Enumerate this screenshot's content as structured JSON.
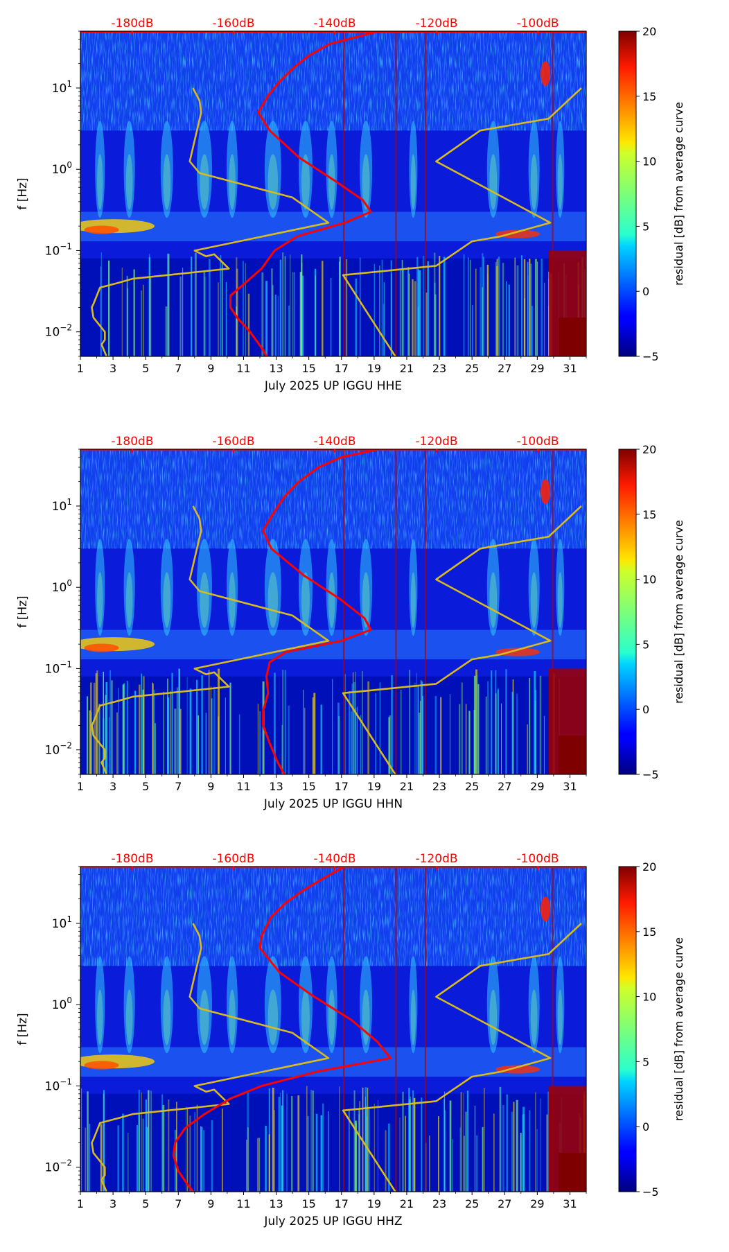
{
  "chart_data": [
    {
      "type": "heatmap",
      "xlabel": "July 2025 UP IGGU  HHE",
      "ylabel": "f [Hz]",
      "colorbar_label": "residual [dB] from average curve",
      "x_ticks": [
        1,
        3,
        5,
        7,
        9,
        11,
        13,
        15,
        17,
        19,
        21,
        23,
        25,
        27,
        29,
        31
      ],
      "x_range": [
        1,
        32
      ],
      "y_range_hz": [
        0.005,
        50
      ],
      "y_scale": "log",
      "y_tick_labels": [
        "10^-2",
        "10^-1",
        "10^0",
        "10^1"
      ],
      "colorbar_ticks": [
        -5,
        0,
        5,
        10,
        15,
        20
      ],
      "colorbar_range": [
        -5,
        20
      ],
      "colormap": "jet",
      "top_axis_labels": [
        "-180dB",
        "-160dB",
        "-140dB",
        "-120dB",
        "-100dB"
      ],
      "top_axis_color": "#ff0000",
      "series": [
        {
          "color": "#d8bb20",
          "points_day_hz": [
            [
              7.9,
              10
            ],
            [
              8.3,
              7
            ],
            [
              8.4,
              5
            ],
            [
              7.7,
              1.25
            ],
            [
              8.3,
              0.9
            ],
            [
              14,
              0.45
            ],
            [
              16.2,
              0.22
            ],
            [
              8,
              0.1
            ],
            [
              8.7,
              0.085
            ],
            [
              9.2,
              0.09
            ],
            [
              10.1,
              0.06
            ],
            [
              4.2,
              0.045
            ],
            [
              3.3,
              0.04
            ],
            [
              2.2,
              0.035
            ],
            [
              1.8,
              0.022
            ],
            [
              1.7,
              0.02
            ],
            [
              1.8,
              0.015
            ],
            [
              2.5,
              0.01
            ],
            [
              2.5,
              0.008
            ],
            [
              2.3,
              0.007
            ],
            [
              2.6,
              0.005
            ]
          ]
        },
        {
          "color": "#d8bb20",
          "points_day_hz": [
            [
              31.7,
              10
            ],
            [
              29.7,
              4.2
            ],
            [
              25.5,
              3
            ],
            [
              22.8,
              1.25
            ],
            [
              29.8,
              0.22
            ],
            [
              26.8,
              0.15
            ],
            [
              25,
              0.13
            ],
            [
              22.8,
              0.065
            ],
            [
              17.1,
              0.05
            ],
            [
              20.3,
              0.005
            ]
          ]
        },
        {
          "color": "#ff0000",
          "points_day_hz": [
            [
              19.3,
              50
            ],
            [
              16.3,
              35
            ],
            [
              15,
              25
            ],
            [
              14.1,
              18
            ],
            [
              13.2,
              12
            ],
            [
              12.5,
              8
            ],
            [
              11.9,
              5
            ],
            [
              12.6,
              3
            ],
            [
              14.4,
              1.4
            ],
            [
              16.7,
              0.7
            ],
            [
              18.3,
              0.42
            ],
            [
              18.8,
              0.3
            ],
            [
              17.2,
              0.22
            ],
            [
              14.3,
              0.15
            ],
            [
              12.9,
              0.1
            ],
            [
              12.1,
              0.06
            ],
            [
              11.1,
              0.04
            ],
            [
              10.2,
              0.028
            ],
            [
              10.2,
              0.02
            ],
            [
              10.6,
              0.015
            ],
            [
              11.4,
              0.01
            ],
            [
              12.2,
              0.006
            ],
            [
              12.4,
              0.005
            ]
          ]
        }
      ]
    },
    {
      "type": "heatmap",
      "xlabel": "July 2025 UP IGGU  HHN",
      "ylabel": "f [Hz]",
      "colorbar_label": "residual [dB] from average curve",
      "x_ticks": [
        1,
        3,
        5,
        7,
        9,
        11,
        13,
        15,
        17,
        19,
        21,
        23,
        25,
        27,
        29,
        31
      ],
      "x_range": [
        1,
        32
      ],
      "y_range_hz": [
        0.005,
        50
      ],
      "y_scale": "log",
      "y_tick_labels": [
        "10^-2",
        "10^-1",
        "10^0",
        "10^1"
      ],
      "colorbar_ticks": [
        -5,
        0,
        5,
        10,
        15,
        20
      ],
      "colorbar_range": [
        -5,
        20
      ],
      "colormap": "jet",
      "top_axis_labels": [
        "-180dB",
        "-160dB",
        "-140dB",
        "-120dB",
        "-100dB"
      ],
      "top_axis_color": "#ff0000",
      "series": [
        {
          "color": "#d8bb20",
          "points_day_hz": [
            [
              7.9,
              10
            ],
            [
              8.3,
              7
            ],
            [
              8.4,
              5
            ],
            [
              7.7,
              1.25
            ],
            [
              8.3,
              0.9
            ],
            [
              14,
              0.45
            ],
            [
              16.2,
              0.22
            ],
            [
              8,
              0.1
            ],
            [
              8.7,
              0.085
            ],
            [
              9.2,
              0.09
            ],
            [
              10.1,
              0.06
            ],
            [
              4.2,
              0.045
            ],
            [
              3.3,
              0.04
            ],
            [
              2.2,
              0.035
            ],
            [
              1.8,
              0.022
            ],
            [
              1.7,
              0.02
            ],
            [
              1.8,
              0.015
            ],
            [
              2.5,
              0.01
            ],
            [
              2.5,
              0.008
            ],
            [
              2.3,
              0.007
            ],
            [
              2.6,
              0.005
            ]
          ]
        },
        {
          "color": "#d8bb20",
          "points_day_hz": [
            [
              31.7,
              10
            ],
            [
              29.7,
              4.2
            ],
            [
              25.5,
              3
            ],
            [
              22.8,
              1.25
            ],
            [
              29.8,
              0.22
            ],
            [
              26.8,
              0.15
            ],
            [
              25,
              0.13
            ],
            [
              22.8,
              0.065
            ],
            [
              17.1,
              0.05
            ],
            [
              20.3,
              0.005
            ]
          ]
        },
        {
          "color": "#ff0000",
          "points_day_hz": [
            [
              19.3,
              50
            ],
            [
              17,
              40
            ],
            [
              15.6,
              30
            ],
            [
              14.4,
              20
            ],
            [
              13.5,
              13
            ],
            [
              12.8,
              8
            ],
            [
              12.2,
              5
            ],
            [
              12.7,
              3
            ],
            [
              14.7,
              1.4
            ],
            [
              16.9,
              0.72
            ],
            [
              18.4,
              0.42
            ],
            [
              18.8,
              0.3
            ],
            [
              17,
              0.22
            ],
            [
              13.6,
              0.16
            ],
            [
              12.6,
              0.12
            ],
            [
              12.4,
              0.08
            ],
            [
              12.5,
              0.05
            ],
            [
              12.2,
              0.03
            ],
            [
              12.2,
              0.02
            ],
            [
              12.6,
              0.012
            ],
            [
              13.1,
              0.007
            ],
            [
              13.5,
              0.005
            ]
          ]
        }
      ]
    },
    {
      "type": "heatmap",
      "xlabel": "July 2025 UP IGGU  HHZ",
      "ylabel": "f [Hz]",
      "colorbar_label": "residual [dB] from average curve",
      "x_ticks": [
        1,
        3,
        5,
        7,
        9,
        11,
        13,
        15,
        17,
        19,
        21,
        23,
        25,
        27,
        29,
        31
      ],
      "x_range": [
        1,
        32
      ],
      "y_range_hz": [
        0.005,
        50
      ],
      "y_scale": "log",
      "y_tick_labels": [
        "10^-2",
        "10^-1",
        "10^0",
        "10^1"
      ],
      "colorbar_ticks": [
        -5,
        0,
        5,
        10,
        15,
        20
      ],
      "colorbar_range": [
        -5,
        20
      ],
      "colormap": "jet",
      "top_axis_labels": [
        "-180dB",
        "-160dB",
        "-140dB",
        "-120dB",
        "-100dB"
      ],
      "top_axis_color": "#ff0000",
      "series": [
        {
          "color": "#d8bb20",
          "points_day_hz": [
            [
              7.9,
              10
            ],
            [
              8.3,
              7
            ],
            [
              8.4,
              5
            ],
            [
              7.7,
              1.25
            ],
            [
              8.3,
              0.9
            ],
            [
              14,
              0.45
            ],
            [
              16.2,
              0.22
            ],
            [
              8,
              0.1
            ],
            [
              8.7,
              0.085
            ],
            [
              9.2,
              0.09
            ],
            [
              10.1,
              0.06
            ],
            [
              4.2,
              0.045
            ],
            [
              3.3,
              0.04
            ],
            [
              2.2,
              0.035
            ],
            [
              1.8,
              0.022
            ],
            [
              1.7,
              0.02
            ],
            [
              1.8,
              0.015
            ],
            [
              2.5,
              0.01
            ],
            [
              2.5,
              0.008
            ],
            [
              2.3,
              0.007
            ],
            [
              2.6,
              0.005
            ]
          ]
        },
        {
          "color": "#d8bb20",
          "points_day_hz": [
            [
              31.7,
              10
            ],
            [
              29.7,
              4.2
            ],
            [
              25.5,
              3
            ],
            [
              22.8,
              1.25
            ],
            [
              29.8,
              0.22
            ],
            [
              26.8,
              0.15
            ],
            [
              25,
              0.13
            ],
            [
              22.8,
              0.065
            ],
            [
              17.1,
              0.05
            ],
            [
              20.3,
              0.005
            ]
          ]
        },
        {
          "color": "#ff0000",
          "points_day_hz": [
            [
              17.2,
              50
            ],
            [
              15.8,
              35
            ],
            [
              14.6,
              25
            ],
            [
              13.6,
              18
            ],
            [
              12.7,
              12
            ],
            [
              12.1,
              7
            ],
            [
              12,
              5
            ],
            [
              13.2,
              2.5
            ],
            [
              15.2,
              1.3
            ],
            [
              17.6,
              0.65
            ],
            [
              19.2,
              0.35
            ],
            [
              20,
              0.22
            ],
            [
              15.5,
              0.15
            ],
            [
              12.1,
              0.1
            ],
            [
              10.2,
              0.07
            ],
            [
              8.6,
              0.045
            ],
            [
              7.4,
              0.03
            ],
            [
              6.8,
              0.02
            ],
            [
              6.7,
              0.014
            ],
            [
              7,
              0.009
            ],
            [
              7.6,
              0.006
            ],
            [
              7.9,
              0.005
            ]
          ]
        }
      ]
    }
  ]
}
